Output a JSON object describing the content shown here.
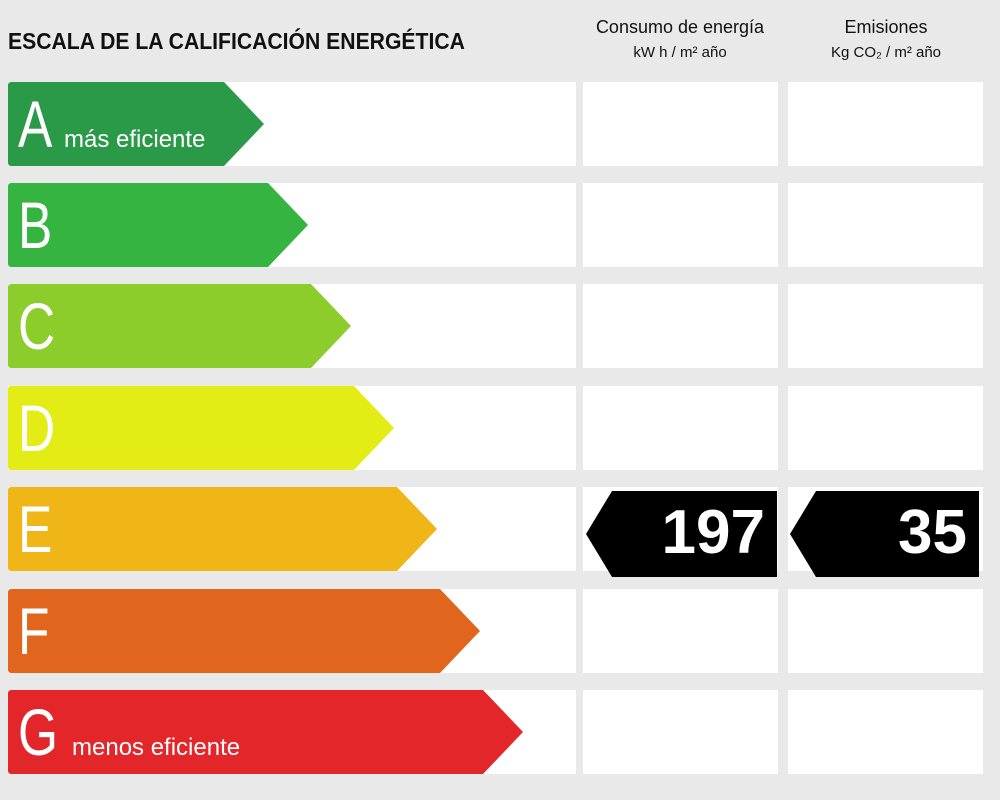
{
  "header": {
    "title": "ESCALA DE LA CALIFICACIÓN ENERGÉTICA",
    "energy_title": "Consumo de energía",
    "energy_unit": "kW h / m² año",
    "emissions_title": "Emisiones",
    "emissions_unit": "Kg CO₂ / m² año"
  },
  "ratings": [
    {
      "letter": "A",
      "note": "más eficiente",
      "color": "#2a9a48"
    },
    {
      "letter": "B",
      "note": "",
      "color": "#36b442"
    },
    {
      "letter": "C",
      "note": "",
      "color": "#8ccd2c"
    },
    {
      "letter": "D",
      "note": "",
      "color": "#e4ec16"
    },
    {
      "letter": "E",
      "note": "",
      "color": "#f0b516"
    },
    {
      "letter": "F",
      "note": "",
      "color": "#e2651e"
    },
    {
      "letter": "G",
      "note": "menos eficiente",
      "color": "#e2262a"
    }
  ],
  "result": {
    "rating": "E",
    "energy_value": "197",
    "emissions_value": "35"
  }
}
